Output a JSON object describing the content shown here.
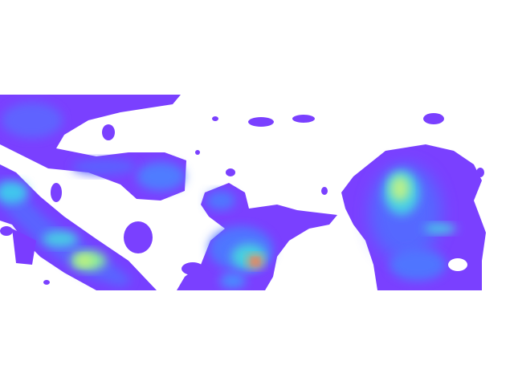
{
  "map": {
    "kind": "density-heatmap",
    "colormap": "rainbow",
    "color_stops": [
      "#7b3cff",
      "#4f6bff",
      "#3ad3e8",
      "#7ef0a0",
      "#ffb05a",
      "#ff6a4a"
    ],
    "background": "#ffffff",
    "legend": "none",
    "axes": "none"
  }
}
